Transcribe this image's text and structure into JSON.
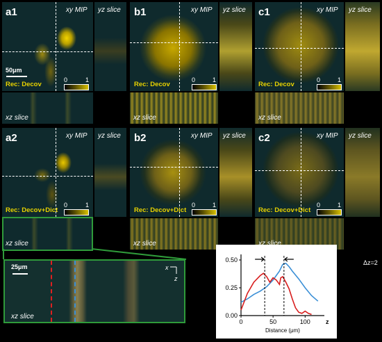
{
  "panels": {
    "a1": {
      "label": "a1",
      "xy": "xy MIP",
      "yz": "yz slice",
      "xz": "xz slice",
      "rec": "Rec: Decov",
      "scalebar": "50μm",
      "c0": "0",
      "c1": "1"
    },
    "b1": {
      "label": "b1",
      "xy": "xy MIP",
      "yz": "yz slice",
      "xz": "xz slice",
      "rec": "Rec: Decov",
      "c0": "0",
      "c1": "1"
    },
    "c1": {
      "label": "c1",
      "xy": "xy MIP",
      "yz": "yz slice",
      "xz": "xz slice",
      "rec": "Rec: Decov",
      "c0": "0",
      "c1": "1"
    },
    "a2": {
      "label": "a2",
      "xy": "xy MIP",
      "yz": "yz slice",
      "xz": "xz slice",
      "rec": "Rec: Decov+Dict",
      "c0": "0",
      "c1": "1"
    },
    "b2": {
      "label": "b2",
      "xy": "xy MIP",
      "yz": "yz slice",
      "xz": "xz slice",
      "rec": "Rec: Decov+Dict",
      "c0": "0",
      "c1": "1"
    },
    "c2": {
      "label": "c2",
      "xy": "xy MIP",
      "yz": "yz slice",
      "xz": "xz slice",
      "rec": "Rec: Decov+Dict",
      "c0": "0",
      "c1": "1"
    }
  },
  "zoom": {
    "scalebar": "25μm",
    "xz": "xz slice",
    "axis_x": "x",
    "axis_z": "z"
  },
  "chart_data": {
    "type": "line",
    "yticks": [
      "0.50",
      "0.25",
      "0.00"
    ],
    "xticks": [
      "0",
      "50",
      "100"
    ],
    "xlabel": "Distance (μm)",
    "x_axis_letter": "z",
    "annotation": "Δz=2",
    "ylim": [
      0,
      0.55
    ],
    "xlim": [
      0,
      130
    ],
    "series": [
      {
        "color": "#3a8fd6",
        "x": [
          0,
          10,
          20,
          30,
          40,
          50,
          55,
          60,
          65,
          70,
          75,
          80,
          90,
          100,
          110,
          120
        ],
        "y": [
          0.12,
          0.15,
          0.19,
          0.22,
          0.26,
          0.32,
          0.36,
          0.4,
          0.46,
          0.47,
          0.44,
          0.4,
          0.33,
          0.25,
          0.18,
          0.13
        ]
      },
      {
        "color": "#d81e1e",
        "x": [
          0,
          10,
          20,
          30,
          35,
          40,
          45,
          50,
          55,
          60,
          62,
          65,
          70,
          75,
          80,
          85,
          90,
          95,
          100,
          105,
          110
        ],
        "y": [
          0.05,
          0.2,
          0.3,
          0.36,
          0.38,
          0.35,
          0.3,
          0.34,
          0.32,
          0.28,
          0.34,
          0.35,
          0.3,
          0.24,
          0.15,
          0.07,
          0.03,
          0.02,
          0.04,
          0.02,
          0.01
        ]
      }
    ],
    "markers_x": [
      37,
      67
    ]
  }
}
